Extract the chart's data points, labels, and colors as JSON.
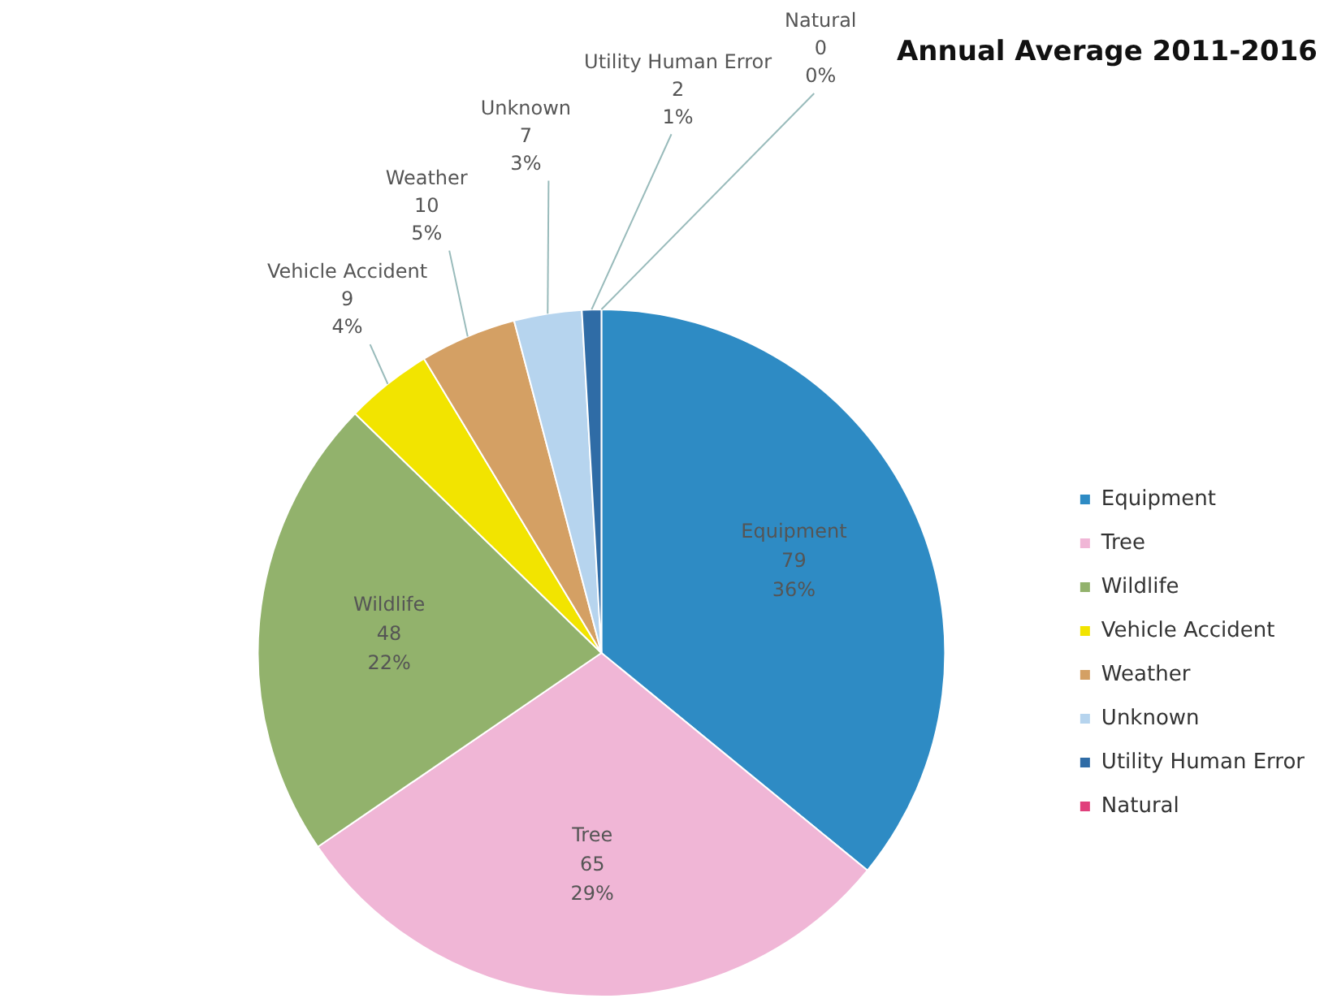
{
  "chart_data": {
    "type": "pie",
    "title": "Annual Average 2011-2016",
    "categories": [
      "Equipment",
      "Tree",
      "Wildlife",
      "Vehicle Accident",
      "Weather",
      "Unknown",
      "Utility Human Error",
      "Natural"
    ],
    "values": [
      79,
      65,
      48,
      9,
      10,
      7,
      2,
      0
    ],
    "value_labels": [
      "79\n36%",
      "65\n29%",
      "48\n22%",
      "9\n4%",
      "10\n5%",
      "7\n3%",
      "2\n1%",
      "0\n0%"
    ],
    "colors": [
      "#2e8bc4",
      "#f0b6d6",
      "#92b26c",
      "#f2e400",
      "#d4a064",
      "#b6d4ee",
      "#2f6ca6",
      "#e0407c"
    ],
    "legend": "right"
  }
}
